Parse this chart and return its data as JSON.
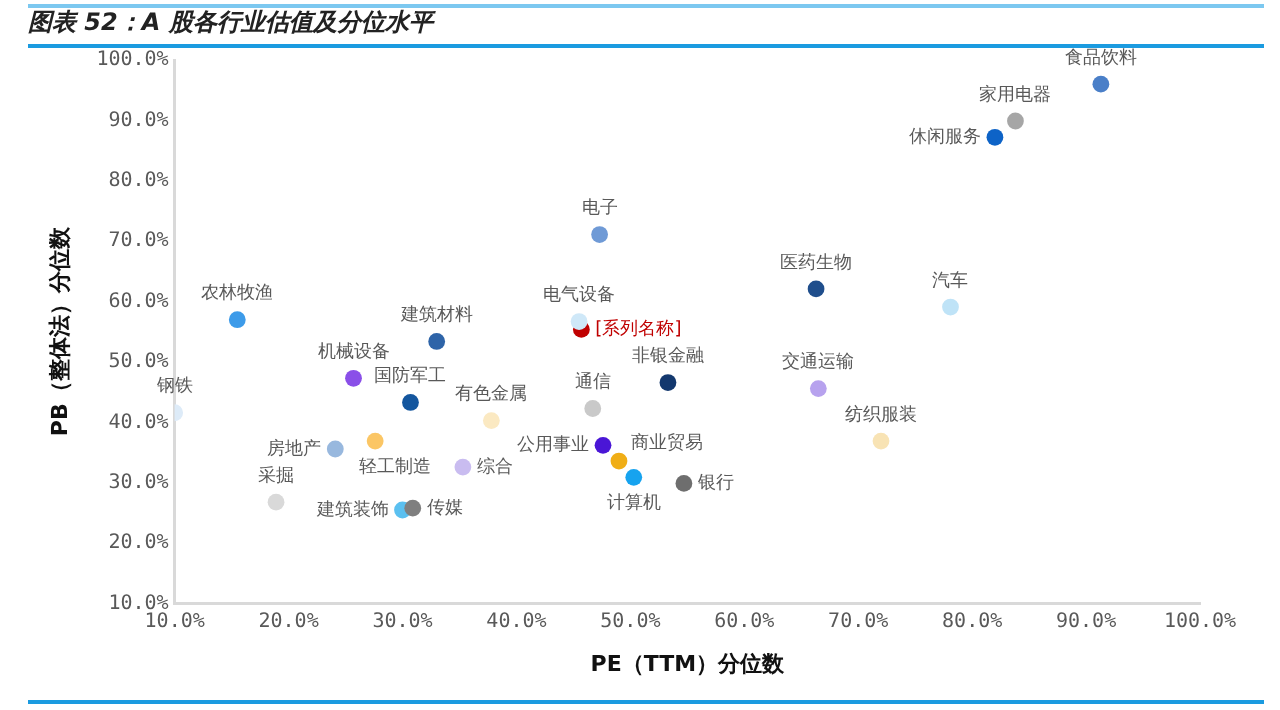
{
  "chart_data": {
    "type": "scatter",
    "title": "图表 52：A 股各行业估值及分位水平",
    "xlabel": "PE（TTM）分位数",
    "ylabel": "PB（整体法）分位数",
    "xlim": [
      10,
      100
    ],
    "ylim": [
      10,
      100
    ],
    "xticks": [
      {
        "value": 10,
        "label": "10.0%"
      },
      {
        "value": 20,
        "label": "20.0%"
      },
      {
        "value": 30,
        "label": "30.0%"
      },
      {
        "value": 40,
        "label": "40.0%"
      },
      {
        "value": 50,
        "label": "50.0%"
      },
      {
        "value": 60,
        "label": "60.0%"
      },
      {
        "value": 70,
        "label": "70.0%"
      },
      {
        "value": 80,
        "label": "80.0%"
      },
      {
        "value": 90,
        "label": "90.0%"
      },
      {
        "value": 100,
        "label": "100.0%"
      }
    ],
    "yticks": [
      {
        "value": 10,
        "label": "10.0%"
      },
      {
        "value": 20,
        "label": "20.0%"
      },
      {
        "value": 30,
        "label": "30.0%"
      },
      {
        "value": 40,
        "label": "40.0%"
      },
      {
        "value": 50,
        "label": "50.0%"
      },
      {
        "value": 60,
        "label": "60.0%"
      },
      {
        "value": 70,
        "label": "70.0%"
      },
      {
        "value": 80,
        "label": "80.0%"
      },
      {
        "value": 90,
        "label": "90.0%"
      },
      {
        "value": 100,
        "label": "100.0%"
      }
    ],
    "grid": false,
    "legend": false,
    "marker": "circle",
    "series": [
      {
        "name": "食品饮料",
        "color": "#4a7fc8",
        "x": [
          91.3
        ],
        "values": [
          96.0
        ]
      },
      {
        "name": "家用电器",
        "color": "#a6a6a6",
        "x": [
          83.8
        ],
        "values": [
          89.9
        ]
      },
      {
        "name": "休闲服务",
        "color": "#0d63c7",
        "x": [
          82.0
        ],
        "values": [
          87.2
        ]
      },
      {
        "name": "电子",
        "color": "#6f9ad6",
        "x": [
          47.3
        ],
        "values": [
          71.1
        ]
      },
      {
        "name": "医药生物",
        "color": "#1f4e8c",
        "x": [
          66.3
        ],
        "values": [
          62.1
        ]
      },
      {
        "name": "汽车",
        "color": "#bfe3f7",
        "x": [
          78.1
        ],
        "values": [
          59.1
        ]
      },
      {
        "name": "农林牧渔",
        "color": "#3d9be9",
        "x": [
          15.5
        ],
        "values": [
          57.0
        ]
      },
      {
        "name": "电气设备",
        "color": "#cfe8f8",
        "x": [
          45.5
        ],
        "values": [
          56.7
        ]
      },
      {
        "name": "[系列名称]",
        "color": "#c00000",
        "x": [
          45.7
        ],
        "values": [
          55.4
        ]
      },
      {
        "name": "建筑材料",
        "color": "#2e64a8",
        "x": [
          33.0
        ],
        "values": [
          53.4
        ]
      },
      {
        "name": "机械设备",
        "color": "#8a4fe8",
        "x": [
          25.7
        ],
        "values": [
          47.3
        ]
      },
      {
        "name": "非银金融",
        "color": "#13386e",
        "x": [
          53.3
        ],
        "values": [
          46.6
        ]
      },
      {
        "name": "国防军工",
        "color": "#14569e",
        "x": [
          30.7
        ],
        "values": [
          43.3
        ]
      },
      {
        "name": "交通运输",
        "color": "#b7a2ee",
        "x": [
          66.5
        ],
        "values": [
          45.6
        ]
      },
      {
        "name": "钢铁",
        "color": "#ddebf8",
        "x": [
          10.0
        ],
        "values": [
          41.6
        ]
      },
      {
        "name": "有色金属",
        "color": "#fbe9c2",
        "x": [
          37.8
        ],
        "values": [
          40.3
        ]
      },
      {
        "name": "轻工制造",
        "color": "#fbc665",
        "x": [
          27.6
        ],
        "values": [
          36.9
        ]
      },
      {
        "name": "房地产",
        "color": "#98b8de",
        "x": [
          24.1
        ],
        "values": [
          35.6
        ]
      },
      {
        "name": "纺织服装",
        "color": "#f8e3b4",
        "x": [
          72.0
        ],
        "values": [
          36.9
        ]
      },
      {
        "name": "通信",
        "color": "#c9c9c9",
        "x": [
          46.7
        ],
        "values": [
          42.3
        ]
      },
      {
        "name": "公用事业",
        "color": "#4a16d6",
        "x": [
          47.6
        ],
        "values": [
          36.2
        ]
      },
      {
        "name": "商业贸易",
        "color": "#f0ae16",
        "x": [
          49.0
        ],
        "values": [
          33.6
        ]
      },
      {
        "name": "计算机",
        "color": "#16a3ef",
        "x": [
          50.3
        ],
        "values": [
          30.9
        ]
      },
      {
        "name": "银行",
        "color": "#6e6e6e",
        "x": [
          54.7
        ],
        "values": [
          29.9
        ]
      },
      {
        "name": "综合",
        "color": "#c9bcf0",
        "x": [
          35.3
        ],
        "values": [
          32.6
        ]
      },
      {
        "name": "采掘",
        "color": "#d9d9d9",
        "x": [
          18.9
        ],
        "values": [
          26.8
        ]
      },
      {
        "name": "传媒",
        "color": "#7f7f7f",
        "x": [
          30.9
        ],
        "values": [
          25.8
        ]
      },
      {
        "name": "建筑装饰",
        "color": "#5bc0f0",
        "x": [
          30.0
        ],
        "values": [
          25.5
        ]
      }
    ]
  }
}
